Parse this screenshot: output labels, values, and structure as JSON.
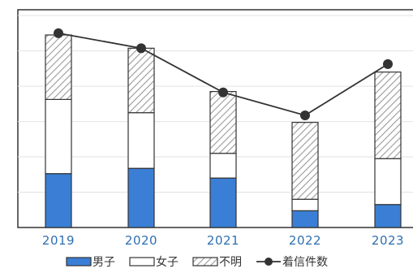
{
  "chart_data": {
    "type": "bar",
    "stacked": true,
    "categories": [
      "2019",
      "2020",
      "2021",
      "2022",
      "2023"
    ],
    "series": [
      {
        "name": "男子",
        "kind": "bar",
        "color": "#3a7fd5",
        "pattern": "solid",
        "values": [
          61,
          67,
          56,
          19,
          26
        ]
      },
      {
        "name": "女子",
        "kind": "bar",
        "color": "#ffffff",
        "pattern": "none",
        "values": [
          84,
          63,
          28,
          13,
          52
        ]
      },
      {
        "name": "不明",
        "kind": "bar",
        "color": "#aaaaaa",
        "pattern": "hatch",
        "values": [
          73,
          73,
          70,
          87,
          98
        ]
      },
      {
        "name": "着信件数",
        "kind": "line",
        "color": "#333333",
        "values": [
          220,
          203,
          153,
          127,
          185
        ]
      }
    ],
    "ylim": [
      0,
      260
    ],
    "grid": true,
    "legend_position": "bottom",
    "title": "",
    "xlabel": "",
    "ylabel": ""
  }
}
